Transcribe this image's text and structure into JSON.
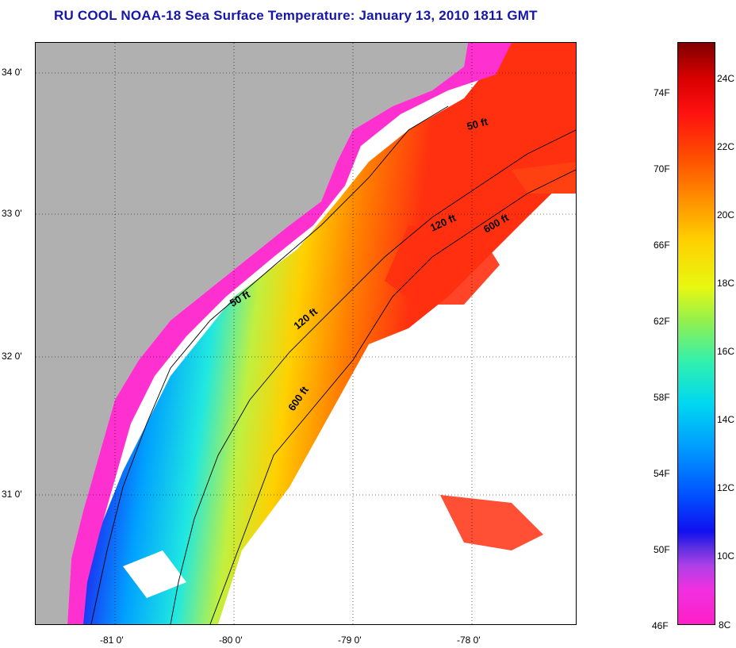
{
  "title": "RU COOL  NOAA-18  Sea Surface Temperature:  January 13, 2010 1811 GMT",
  "map": {
    "latitude_labels": [
      "34 0'",
      "33 0'",
      "32 0'",
      "31 0'"
    ],
    "longitude_labels": [
      "-81 0'",
      "-80 0'",
      "-79 0'",
      "-78 0'"
    ],
    "depth_contour_labels": [
      "50 ft",
      "120 ft",
      "600 ft",
      "50 ft",
      "120 ft",
      "600 ft"
    ],
    "colors": {
      "land": "#b0b0b0",
      "cloud": "#ffffff",
      "grid": "#000000"
    }
  },
  "colorbar": {
    "fahrenheit_labels": [
      "74F",
      "70F",
      "66F",
      "62F",
      "58F",
      "54F",
      "50F",
      "46F"
    ],
    "celsius_labels": [
      "24C",
      "22C",
      "20C",
      "18C",
      "16C",
      "14C",
      "12C",
      "10C",
      "8C"
    ],
    "range_c": [
      8,
      25
    ]
  }
}
